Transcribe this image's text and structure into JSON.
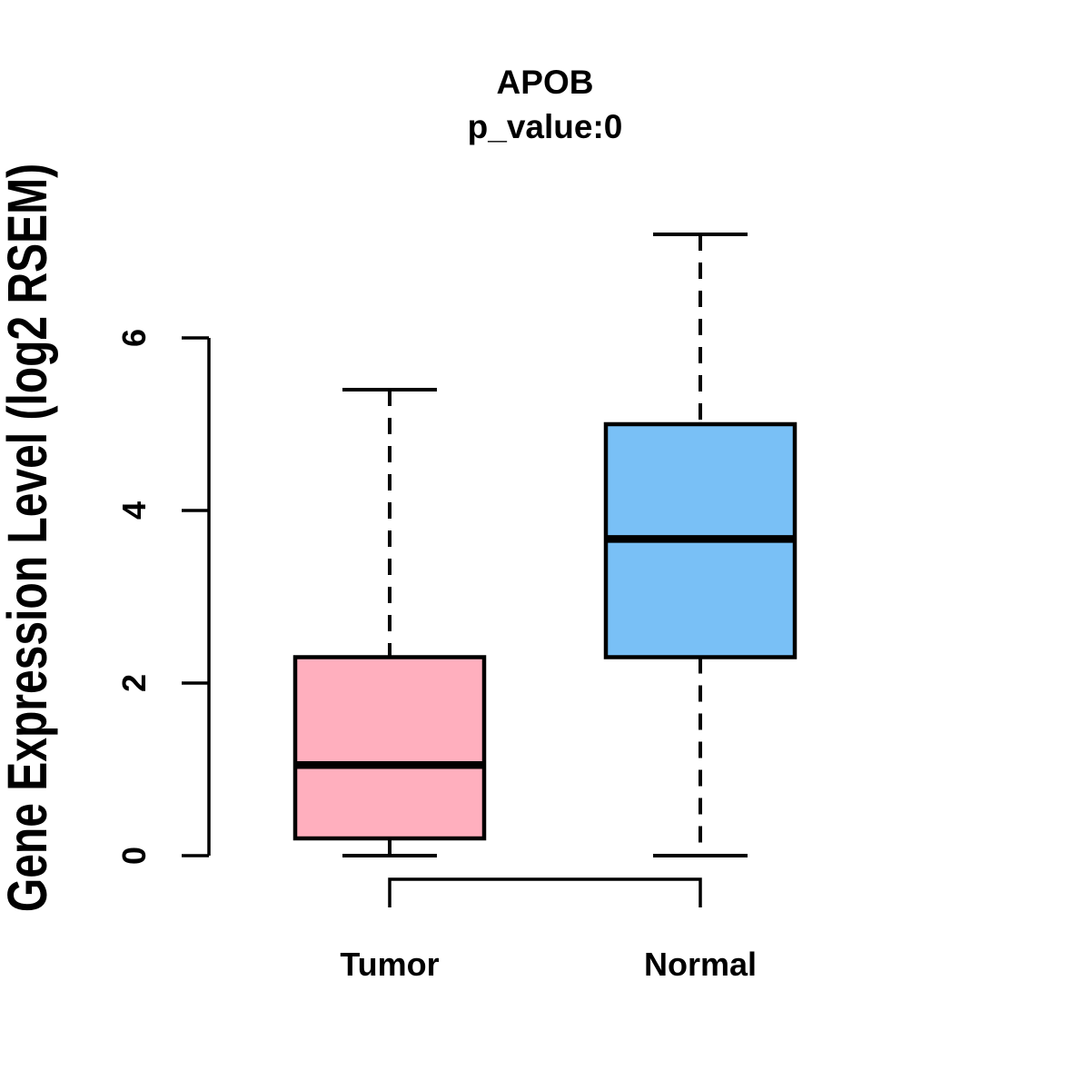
{
  "chart_data": {
    "type": "boxplot",
    "title": "APOB",
    "subtitle": "p_value:0",
    "xlabel": "",
    "ylabel": "Gene Expression Level (log2 RSEM)",
    "categories": [
      "Tumor",
      "Normal"
    ],
    "yticks": [
      "0",
      "2",
      "4",
      "6"
    ],
    "ylim": [
      0,
      7.3
    ],
    "grid": false,
    "legend": "none",
    "whisker_style": "dashed",
    "box_border_color": "#000000",
    "median_color": "#000000",
    "series": [
      {
        "name": "Tumor",
        "fill_color": "#FFAFBE",
        "stats": {
          "lower_whisker": 0.0,
          "q1": 0.2,
          "median": 1.05,
          "q3": 2.3,
          "upper_whisker": 5.4
        }
      },
      {
        "name": "Normal",
        "fill_color": "#79C0F6",
        "stats": {
          "lower_whisker": 0.0,
          "q1": 2.3,
          "median": 3.67,
          "q3": 5.0,
          "upper_whisker": 7.2
        }
      }
    ],
    "annotations": {
      "comparison_bracket": {
        "between": [
          "Tumor",
          "Normal"
        ]
      }
    }
  }
}
